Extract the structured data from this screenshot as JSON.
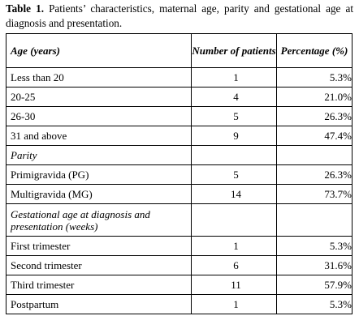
{
  "caption": {
    "label": "Table 1.",
    "text": " Patients’ characteristics, maternal age, parity and gestational age at diagnosis and presentation."
  },
  "table": {
    "headers": {
      "col1": "Age (years)",
      "col2": "Number of patients",
      "col3": "Percentage (%)"
    },
    "age_rows": [
      {
        "label": "Less than 20",
        "n": "1",
        "pct": "5.3%"
      },
      {
        "label": "20-25",
        "n": "4",
        "pct": "21.0%"
      },
      {
        "label": "26-30",
        "n": "5",
        "pct": "26.3%"
      },
      {
        "label": "31 and above",
        "n": "9",
        "pct": "47.4%"
      }
    ],
    "parity_title": "Parity",
    "parity_rows": [
      {
        "label": "Primigravida (PG)",
        "n": "5",
        "pct": "26.3%"
      },
      {
        "label": "Multigravida (MG)",
        "n": "14",
        "pct": "73.7%"
      }
    ],
    "gestation_title": "Gestational age at diagnosis and presentation (weeks)",
    "gestation_rows": [
      {
        "label": "First trimester",
        "n": "1",
        "pct": "5.3%"
      },
      {
        "label": "Second trimester",
        "n": "6",
        "pct": "31.6%"
      },
      {
        "label": "Third trimester",
        "n": "11",
        "pct": "57.9%"
      },
      {
        "label": "Postpartum",
        "n": "1",
        "pct": "5.3%"
      }
    ]
  }
}
